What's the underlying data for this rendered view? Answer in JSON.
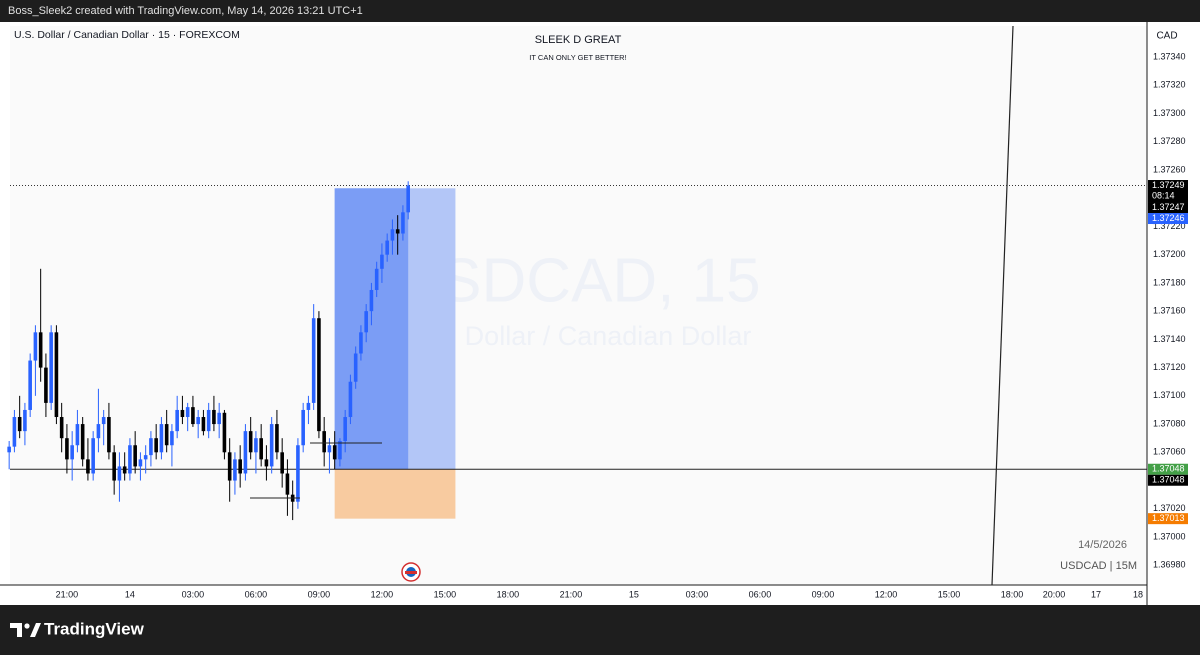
{
  "chart_data": {
    "type": "candlestick",
    "header": "Boss_Sleek2 created with TradingView.com, May 14, 2026 13:21 UTC+1",
    "symbol_legend": "U.S. Dollar / Canadian Dollar · 15 · FOREXCOM",
    "title": "SLEEK D GREAT",
    "subtitle": "IT CAN ONLY GET BETTER!",
    "watermark": [
      "USDCAD, 15",
      "U.S. Dollar / Canadian Dollar"
    ],
    "date_note": "14/5/2026",
    "timeframe_note": "USDCAD | 15M",
    "y_axis_label": "CAD",
    "brand": "TradingView",
    "up_color": "#2962ff",
    "down_color": "#000000",
    "grid": false,
    "x": [
      18.25,
      18.5,
      18.75,
      19,
      19.25,
      19.5,
      19.75,
      20,
      20.25,
      20.5,
      20.75,
      21,
      21.25,
      21.5,
      21.75,
      22,
      22.25,
      22.5,
      22.75,
      23,
      23.25,
      23.5,
      23.75,
      24,
      24.25,
      24.5,
      24.75,
      25,
      25.25,
      25.5,
      25.75,
      26,
      26.25,
      26.5,
      26.75,
      27,
      27.25,
      27.5,
      27.75,
      28,
      28.25,
      28.5,
      28.75,
      29,
      29.25,
      29.5,
      29.75,
      30,
      30.25,
      30.5,
      30.75,
      31,
      31.25,
      31.5,
      31.75,
      32,
      32.25,
      32.5,
      32.75,
      33,
      33.25,
      33.5,
      33.75,
      34,
      34.25,
      34.5,
      34.75,
      35,
      35.25,
      35.5,
      35.75,
      36,
      36.25,
      36.5,
      36.75,
      37,
      37.25
    ],
    "open": [
      1.3706,
      1.37064,
      1.37085,
      1.37075,
      1.3709,
      1.37125,
      1.37145,
      1.3712,
      1.37095,
      1.37145,
      1.37085,
      1.3707,
      1.37055,
      1.37065,
      1.3708,
      1.37055,
      1.37045,
      1.3707,
      1.3708,
      1.37085,
      1.3706,
      1.3704,
      1.3705,
      1.37045,
      1.37065,
      1.3705,
      1.37055,
      1.37058,
      1.3707,
      1.3706,
      1.3708,
      1.37065,
      1.37075,
      1.3709,
      1.37085,
      1.37092,
      1.3708,
      1.37085,
      1.37075,
      1.3709,
      1.3708,
      1.37088,
      1.3706,
      1.3704,
      1.37055,
      1.37045,
      1.37075,
      1.3706,
      1.3707,
      1.37055,
      1.3705,
      1.3708,
      1.3706,
      1.37045,
      1.3703,
      1.37025,
      1.37065,
      1.3709,
      1.37095,
      1.37155,
      1.37075,
      1.3706,
      1.37065,
      1.37055,
      1.37068,
      1.37085,
      1.3711,
      1.3713,
      1.37145,
      1.3716,
      1.37175,
      1.3719,
      1.372,
      1.3721,
      1.37218,
      1.37215,
      1.3723
    ],
    "high": [
      1.37068,
      1.3709,
      1.371,
      1.37095,
      1.3713,
      1.3715,
      1.3719,
      1.3713,
      1.3715,
      1.3715,
      1.37095,
      1.3708,
      1.37075,
      1.3709,
      1.37085,
      1.3707,
      1.37075,
      1.37105,
      1.3709,
      1.37095,
      1.37065,
      1.3706,
      1.3706,
      1.3707,
      1.37075,
      1.3706,
      1.37065,
      1.37075,
      1.3708,
      1.37085,
      1.3709,
      1.3708,
      1.371,
      1.371,
      1.37095,
      1.371,
      1.3709,
      1.3709,
      1.37095,
      1.371,
      1.37095,
      1.3709,
      1.3707,
      1.3706,
      1.37065,
      1.3708,
      1.37085,
      1.37075,
      1.3708,
      1.37065,
      1.37085,
      1.3709,
      1.3707,
      1.37055,
      1.3704,
      1.3707,
      1.37095,
      1.371,
      1.37165,
      1.3716,
      1.37085,
      1.3707,
      1.37075,
      1.3707,
      1.3709,
      1.37115,
      1.37135,
      1.3715,
      1.37165,
      1.3718,
      1.37195,
      1.37208,
      1.37215,
      1.37225,
      1.37228,
      1.37235,
      1.37252
    ],
    "low": [
      1.37048,
      1.3706,
      1.3707,
      1.37065,
      1.37085,
      1.371,
      1.3711,
      1.37085,
      1.3709,
      1.3708,
      1.3706,
      1.37045,
      1.3704,
      1.3706,
      1.3705,
      1.3704,
      1.3704,
      1.3706,
      1.37065,
      1.37055,
      1.3703,
      1.37025,
      1.3704,
      1.3704,
      1.37045,
      1.3704,
      1.37045,
      1.3705,
      1.37055,
      1.37055,
      1.3706,
      1.3705,
      1.3707,
      1.3708,
      1.37075,
      1.37078,
      1.3707,
      1.37072,
      1.3707,
      1.37075,
      1.3707,
      1.37055,
      1.37025,
      1.3703,
      1.37035,
      1.3704,
      1.37055,
      1.37045,
      1.3705,
      1.3704,
      1.37045,
      1.37055,
      1.37035,
      1.37015,
      1.37012,
      1.3702,
      1.3706,
      1.3708,
      1.3709,
      1.3707,
      1.3705,
      1.37045,
      1.37048,
      1.3705,
      1.3706,
      1.3708,
      1.37105,
      1.37125,
      1.37138,
      1.3715,
      1.3717,
      1.3718,
      1.37195,
      1.372,
      1.372,
      1.3721,
      1.37225
    ],
    "close": [
      1.37064,
      1.37085,
      1.37075,
      1.3709,
      1.37125,
      1.37145,
      1.3712,
      1.37095,
      1.37145,
      1.37085,
      1.3707,
      1.37055,
      1.37065,
      1.3708,
      1.37055,
      1.37045,
      1.3707,
      1.3708,
      1.37085,
      1.3706,
      1.3704,
      1.3705,
      1.37045,
      1.37065,
      1.3705,
      1.37055,
      1.37058,
      1.3707,
      1.3706,
      1.3708,
      1.37065,
      1.37075,
      1.3709,
      1.37085,
      1.37092,
      1.3708,
      1.37085,
      1.37075,
      1.3709,
      1.3708,
      1.37088,
      1.3706,
      1.3704,
      1.37055,
      1.37045,
      1.37075,
      1.3706,
      1.3707,
      1.37055,
      1.3705,
      1.3708,
      1.3706,
      1.37045,
      1.3703,
      1.37025,
      1.37065,
      1.3709,
      1.37095,
      1.37155,
      1.37075,
      1.3706,
      1.37065,
      1.37055,
      1.37068,
      1.37085,
      1.3711,
      1.3713,
      1.37145,
      1.3716,
      1.37175,
      1.3719,
      1.372,
      1.3721,
      1.37218,
      1.37215,
      1.3723,
      1.37249
    ],
    "xlim": [
      18.29,
      72.43
    ],
    "xticks": [
      {
        "value": 21,
        "label": "21:00"
      },
      {
        "value": 24,
        "label": "14"
      },
      {
        "value": 27,
        "label": "03:00"
      },
      {
        "value": 30,
        "label": "06:00"
      },
      {
        "value": 33,
        "label": "09:00"
      },
      {
        "value": 36,
        "label": "12:00"
      },
      {
        "value": 39,
        "label": "15:00"
      },
      {
        "value": 42,
        "label": "18:00"
      },
      {
        "value": 45,
        "label": "21:00"
      },
      {
        "value": 48,
        "label": "15"
      },
      {
        "value": 51,
        "label": "03:00"
      },
      {
        "value": 54,
        "label": "06:00"
      },
      {
        "value": 57,
        "label": "09:00"
      },
      {
        "value": 60,
        "label": "12:00"
      },
      {
        "value": 63,
        "label": "15:00"
      },
      {
        "value": 66,
        "label": "18:00"
      },
      {
        "value": 68,
        "label": "20:00"
      },
      {
        "value": 70,
        "label": "17"
      },
      {
        "value": 72,
        "label": "18"
      }
    ],
    "ylim": [
      1.36966,
      1.37362
    ],
    "yticks": [
      {
        "value": 1.3734,
        "label": "1.37340"
      },
      {
        "value": 1.3732,
        "label": "1.37320"
      },
      {
        "value": 1.373,
        "label": "1.37300"
      },
      {
        "value": 1.3728,
        "label": "1.37280"
      },
      {
        "value": 1.3726,
        "label": "1.37260"
      },
      {
        "value": 1.3722,
        "label": "1.37220"
      },
      {
        "value": 1.372,
        "label": "1.37200"
      },
      {
        "value": 1.3718,
        "label": "1.37180"
      },
      {
        "value": 1.3716,
        "label": "1.37160"
      },
      {
        "value": 1.3714,
        "label": "1.37140"
      },
      {
        "value": 1.3712,
        "label": "1.37120"
      },
      {
        "value": 1.371,
        "label": "1.37100"
      },
      {
        "value": 1.3708,
        "label": "1.37080"
      },
      {
        "value": 1.3706,
        "label": "1.37060"
      },
      {
        "value": 1.3702,
        "label": "1.37020"
      },
      {
        "value": 1.37,
        "label": "1.37000"
      },
      {
        "value": 1.3698,
        "label": "1.36980"
      }
    ],
    "position": {
      "entry": 1.37048,
      "target": 1.37247,
      "stop": 1.37013,
      "start": 33.75,
      "end": 39.5
    },
    "price_labels": [
      {
        "value": 1.37249,
        "color": "#000000",
        "countdown": "08:14"
      },
      {
        "value": 1.37247,
        "color": "#000000"
      },
      {
        "value": 1.37246,
        "color": "#2962ff"
      },
      {
        "value": 1.37048,
        "color": "#43a047"
      },
      {
        "value": 1.37048,
        "color": "#000000"
      },
      {
        "value": 1.37013,
        "color": "#f57c00"
      }
    ]
  }
}
